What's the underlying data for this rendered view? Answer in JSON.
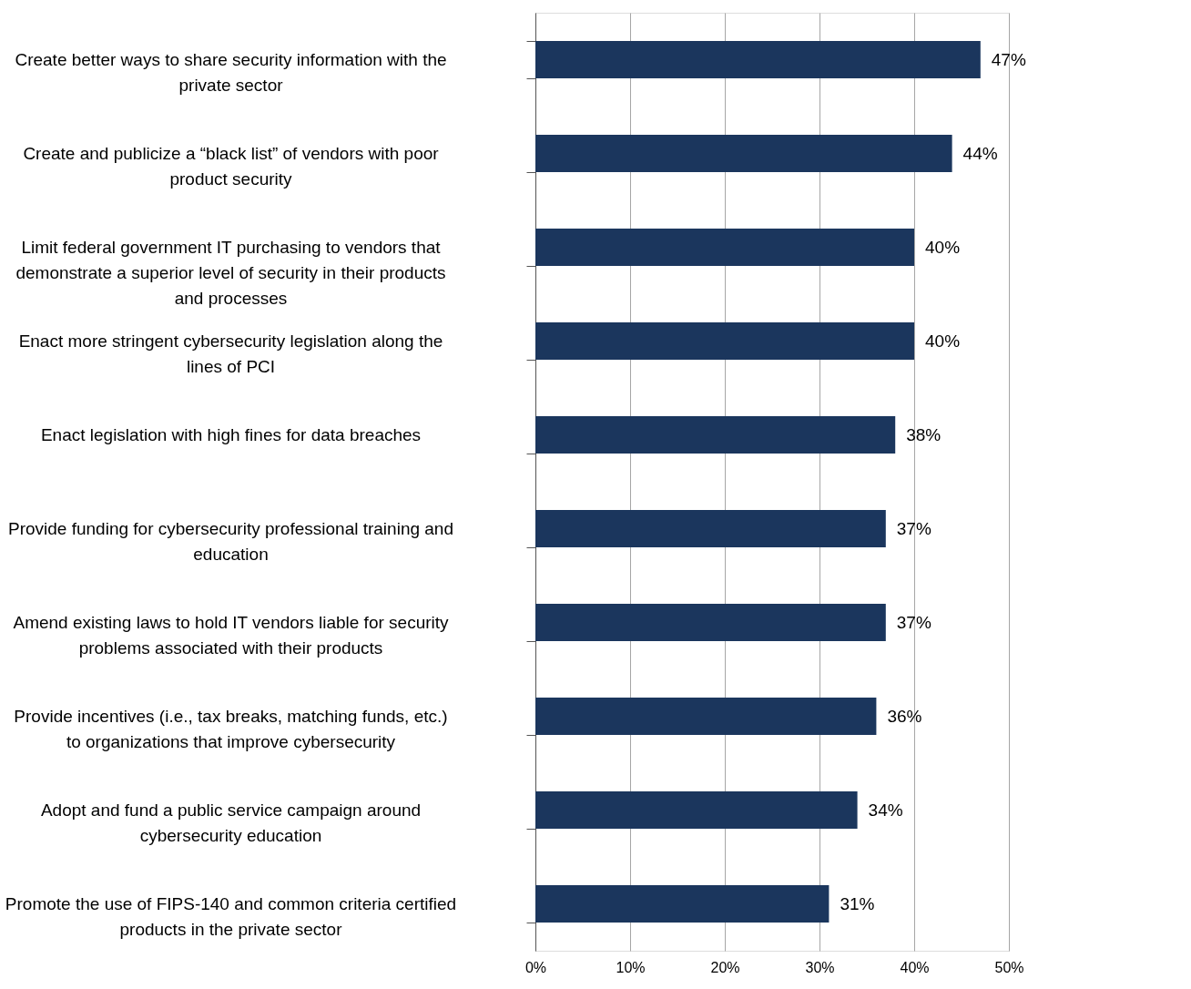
{
  "chart_data": {
    "type": "bar",
    "orientation": "horizontal",
    "categories": [
      "Create better ways to share security information with the private sector",
      "Create and publicize a “black list” of vendors with poor product security",
      "Limit federal government IT purchasing to vendors that demonstrate a superior level of security in their products and processes",
      "Enact more stringent cybersecurity legislation along the lines of PCI",
      "Enact legislation with high fines for data breaches",
      "Provide funding for cybersecurity professional training and education",
      "Amend existing laws to hold IT vendors liable for security problems associated with their products",
      "Provide incentives (i.e., tax breaks, matching funds, etc.) to organizations that improve cybersecurity",
      "Adopt and fund a public service campaign around cybersecurity education",
      "Promote the use of FIPS-140 and common criteria certified products in the private sector"
    ],
    "values": [
      47,
      44,
      40,
      40,
      38,
      37,
      37,
      36,
      34,
      31
    ],
    "value_labels": [
      "47%",
      "44%",
      "40%",
      "40%",
      "38%",
      "37%",
      "37%",
      "36%",
      "34%",
      "31%"
    ],
    "color": "#1b365d",
    "xlim": [
      0,
      50
    ],
    "xticks": [
      {
        "value": 0,
        "label": "0%"
      },
      {
        "value": 10,
        "label": "10%"
      },
      {
        "value": 20,
        "label": "20%"
      },
      {
        "value": 30,
        "label": "30%"
      },
      {
        "value": 40,
        "label": "40%"
      },
      {
        "value": 50,
        "label": "50%"
      }
    ],
    "grid": "x"
  }
}
